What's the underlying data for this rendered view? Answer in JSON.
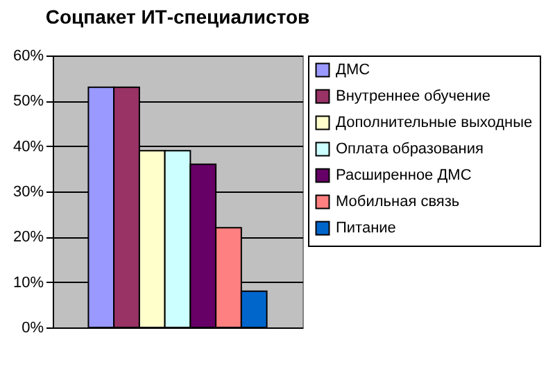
{
  "chart_data": {
    "type": "bar",
    "title": "Соцпакет ИТ-специалистов",
    "categories": [
      null
    ],
    "series": [
      {
        "name": "ДМС",
        "color": "#9999ff",
        "values": [
          53
        ]
      },
      {
        "name": "Внутреннее обучение",
        "color": "#993366",
        "values": [
          53
        ]
      },
      {
        "name": "Дополнительные выходные",
        "color": "#ffffcc",
        "values": [
          39
        ]
      },
      {
        "name": "Оплата образования",
        "color": "#ccffff",
        "values": [
          39
        ]
      },
      {
        "name": "Расширенное ДМС",
        "color": "#660066",
        "values": [
          36
        ]
      },
      {
        "name": "Мобильная связь",
        "color": "#ff8080",
        "values": [
          22
        ]
      },
      {
        "name": "Питание",
        "color": "#0066cc",
        "values": [
          8
        ]
      }
    ],
    "ylim": [
      0,
      60
    ],
    "yticks": [
      {
        "value": 0,
        "label": "0%"
      },
      {
        "value": 10,
        "label": "10%"
      },
      {
        "value": 20,
        "label": "20%"
      },
      {
        "value": 30,
        "label": "30%"
      },
      {
        "value": 40,
        "label": "40%"
      },
      {
        "value": 50,
        "label": "50%"
      },
      {
        "value": 60,
        "label": "60%"
      }
    ],
    "grid": "y",
    "legend": "right"
  }
}
